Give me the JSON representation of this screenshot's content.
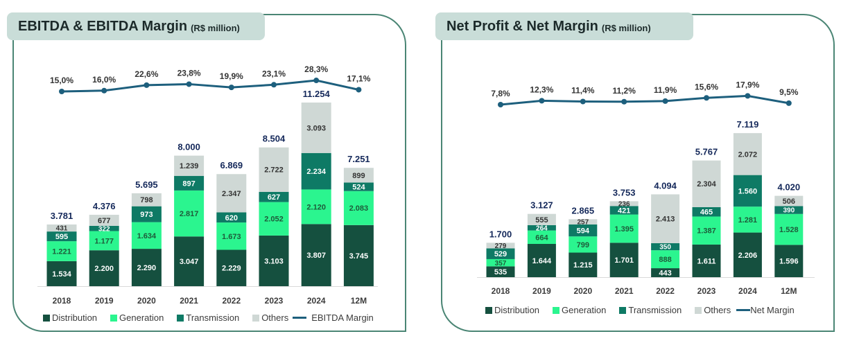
{
  "colors": {
    "distribution": "#15503f",
    "generation": "#2bf58f",
    "transmission": "#0e7a65",
    "others": "#cfd8d5",
    "margin_line": "#1d5f7d",
    "total_label": "#14285a",
    "frame": "#4a8574",
    "title_bg": "#c9ddd8"
  },
  "chart_data": [
    {
      "id": "ebitda",
      "type": "bar",
      "stacked": true,
      "title": "EBITDA & EBITDA Margin",
      "unit": "(R$ million)",
      "categories": [
        "2018",
        "2019",
        "2020",
        "2021",
        "2022",
        "2023",
        "2024",
        "12M"
      ],
      "series": [
        {
          "name": "Distribution",
          "key": "distribution",
          "values": [
            1534,
            2200,
            2290,
            3047,
            2229,
            3103,
            3807,
            3745
          ],
          "labels": [
            "1.534",
            "2.200",
            "2.290",
            "3.047",
            "2.229",
            "3.103",
            "3.807",
            "3.745"
          ]
        },
        {
          "name": "Generation",
          "key": "generation",
          "values": [
            1221,
            1177,
            1634,
            2817,
            1673,
            2052,
            2120,
            2083
          ],
          "labels": [
            "1.221",
            "1.177",
            "1.634",
            "2.817",
            "1.673",
            "2.052",
            "2.120",
            "2.083"
          ]
        },
        {
          "name": "Transmission",
          "key": "transmission",
          "values": [
            595,
            322,
            973,
            897,
            620,
            627,
            2234,
            524
          ],
          "labels": [
            "595",
            "322",
            "973",
            "897",
            "620",
            "627",
            "2.234",
            "524"
          ]
        },
        {
          "name": "Others",
          "key": "others",
          "values": [
            431,
            677,
            798,
            1239,
            2347,
            2722,
            3093,
            899
          ],
          "labels": [
            "431",
            "677",
            "798",
            "1.239",
            "2.347",
            "2.722",
            "3.093",
            "899"
          ]
        }
      ],
      "totals": [
        3781,
        4376,
        5695,
        8000,
        6869,
        8504,
        11254,
        7251
      ],
      "total_labels": [
        "3.781",
        "4.376",
        "5.695",
        "8.000",
        "6.869",
        "8.504",
        "11.254",
        "7.251"
      ],
      "line": {
        "name": "EBITDA Margin",
        "values": [
          15.0,
          16.0,
          22.6,
          23.8,
          19.9,
          23.1,
          28.3,
          17.1
        ],
        "labels": [
          "15,0%",
          "16,0%",
          "22,6%",
          "23,8%",
          "19,9%",
          "23,1%",
          "28,3%",
          "17,1%"
        ]
      },
      "legend": [
        "Distribution",
        "Generation",
        "Transmission",
        "Others",
        "EBITDA Margin"
      ],
      "legend_position": "bottom",
      "grid": false
    },
    {
      "id": "netprofit",
      "type": "bar",
      "stacked": true,
      "title": "Net Profit & Net Margin",
      "unit": "(R$ million)",
      "categories": [
        "2018",
        "2019",
        "2020",
        "2021",
        "2022",
        "2023",
        "2024",
        "12M"
      ],
      "series": [
        {
          "name": "Distribution",
          "key": "distribution",
          "values": [
            535,
            1644,
            1215,
            1701,
            443,
            1611,
            2206,
            1596
          ],
          "labels": [
            "535",
            "1.644",
            "1.215",
            "1.701",
            "443",
            "1.611",
            "2.206",
            "1.596"
          ]
        },
        {
          "name": "Generation",
          "key": "generation",
          "values": [
            357,
            664,
            799,
            1395,
            888,
            1387,
            1281,
            1528
          ],
          "labels": [
            "357",
            "664",
            "799",
            "1.395",
            "888",
            "1.387",
            "1.281",
            "1.528"
          ]
        },
        {
          "name": "Transmission",
          "key": "transmission",
          "values": [
            529,
            264,
            594,
            421,
            350,
            465,
            1560,
            390
          ],
          "labels": [
            "529",
            "264",
            "594",
            "421",
            "350",
            "465",
            "1.560",
            "390"
          ]
        },
        {
          "name": "Others",
          "key": "others",
          "values": [
            279,
            555,
            257,
            236,
            2413,
            2304,
            2072,
            506
          ],
          "labels": [
            "279",
            "555",
            "257",
            "236",
            "2.413",
            "2.304",
            "2.072",
            "506"
          ]
        }
      ],
      "totals": [
        1700,
        3127,
        2865,
        3753,
        4094,
        5767,
        7119,
        4020
      ],
      "total_labels": [
        "1.700",
        "3.127",
        "2.865",
        "3.753",
        "4.094",
        "5.767",
        "7.119",
        "4.020"
      ],
      "line": {
        "name": "Net Margin",
        "values": [
          7.8,
          12.3,
          11.4,
          11.2,
          11.9,
          15.6,
          17.9,
          9.5
        ],
        "labels": [
          "7,8%",
          "12,3%",
          "11,4%",
          "11,2%",
          "11,9%",
          "15,6%",
          "17,9%",
          "9,5%"
        ]
      },
      "legend": [
        "Distribution",
        "Generation",
        "Transmission",
        "Others",
        "Net Margin"
      ],
      "legend_position": "bottom",
      "grid": false
    }
  ],
  "panels": [
    {
      "title": "EBITDA & EBITDA Margin",
      "unit": "(R$ million)",
      "legend": [
        "Distribution",
        "Generation",
        "Transmission",
        "Others",
        "EBITDA Margin"
      ]
    },
    {
      "title": "Net Profit & Net Margin",
      "unit": "(R$ million)",
      "legend": [
        "Distribution",
        "Generation",
        "Transmission",
        "Others",
        "Net Margin"
      ]
    }
  ]
}
